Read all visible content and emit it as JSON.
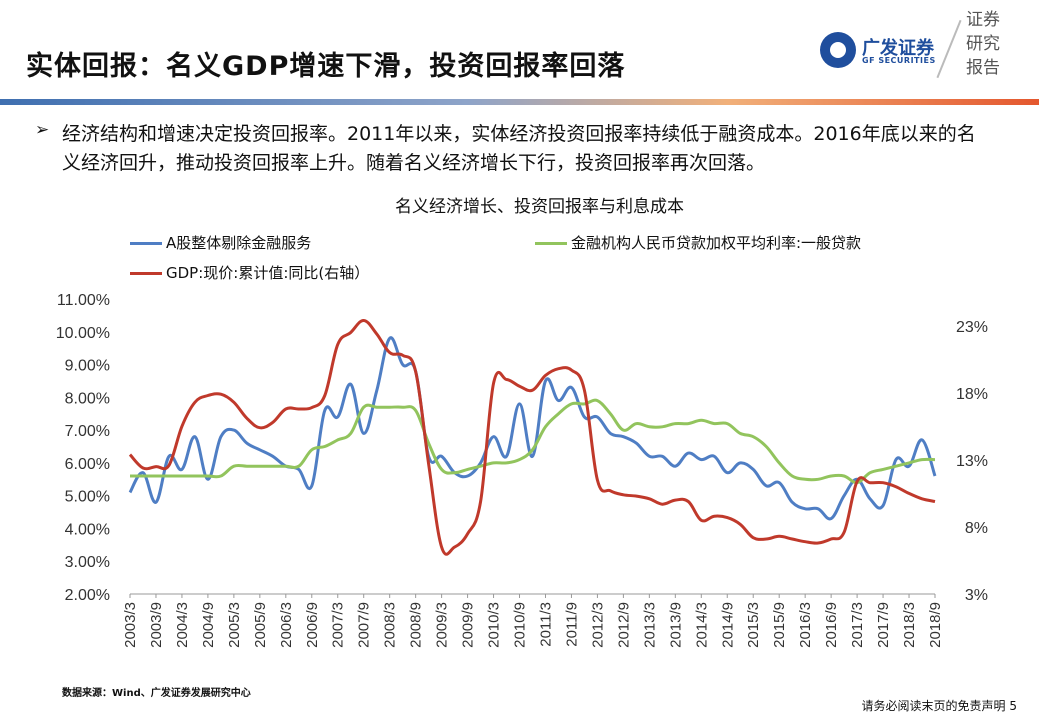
{
  "header": {
    "title": "实体回报：名义GDP增速下滑，投资回报率回落",
    "logo_cn": "广发证券",
    "logo_en": "GF SECURITIES",
    "report_tag": [
      "证券",
      "研究",
      "报告"
    ]
  },
  "body": {
    "bullet": "➢",
    "text": "经济结构和增速决定投资回报率。2011年以来，实体经济投资回报率持续低于融资成本。2016年底以来的名义经济回升，推动投资回报率上升。随着名义经济增长下行，投资回报率再次回落。"
  },
  "footer": {
    "source": "数据来源：Wind、广发证券发展研究中心",
    "disclaimer": "请务必阅读末页的免责声明 5"
  },
  "colors": {
    "blue": "#4f7ec4",
    "green": "#92c45d",
    "red": "#c0392b"
  },
  "chart_data": {
    "type": "line",
    "title": "名义经济增长、投资回报率与利息成本",
    "categories": [
      "2003/3",
      "2003/6",
      "2003/9",
      "2003/12",
      "2004/3",
      "2004/6",
      "2004/9",
      "2004/12",
      "2005/3",
      "2005/6",
      "2005/9",
      "2005/12",
      "2006/3",
      "2006/6",
      "2006/9",
      "2006/12",
      "2007/3",
      "2007/6",
      "2007/9",
      "2007/12",
      "2008/3",
      "2008/6",
      "2008/9",
      "2008/12",
      "2009/3",
      "2009/6",
      "2009/9",
      "2009/12",
      "2010/3",
      "2010/6",
      "2010/9",
      "2010/12",
      "2011/3",
      "2011/6",
      "2011/9",
      "2011/12",
      "2012/3",
      "2012/6",
      "2012/9",
      "2012/12",
      "2013/3",
      "2013/6",
      "2013/9",
      "2013/12",
      "2014/3",
      "2014/6",
      "2014/9",
      "2014/12",
      "2015/3",
      "2015/6",
      "2015/9",
      "2015/12",
      "2016/3",
      "2016/6",
      "2016/9",
      "2016/12",
      "2017/3",
      "2017/6",
      "2017/9",
      "2017/12",
      "2018/3",
      "2018/6",
      "2018/9"
    ],
    "x_tick_labels": [
      "2003/3",
      "2003/9",
      "2004/3",
      "2004/9",
      "2005/3",
      "2005/9",
      "2006/3",
      "2006/9",
      "2007/3",
      "2007/9",
      "2008/3",
      "2008/9",
      "2009/3",
      "2009/9",
      "2010/3",
      "2010/9",
      "2011/3",
      "2011/9",
      "2012/3",
      "2012/9",
      "2013/3",
      "2013/9",
      "2014/3",
      "2014/9",
      "2015/3",
      "2015/9",
      "2016/3",
      "2016/9",
      "2017/3",
      "2017/9",
      "2018/3",
      "2018/9"
    ],
    "y_left": {
      "ylim": [
        2.0,
        11.0
      ],
      "ticks": [
        "2.00%",
        "3.00%",
        "4.00%",
        "5.00%",
        "6.00%",
        "7.00%",
        "8.00%",
        "9.00%",
        "10.00%",
        "11.00%"
      ]
    },
    "y_right": {
      "ylim": [
        3,
        25
      ],
      "ticks": [
        "3%",
        "8%",
        "13%",
        "18%",
        "23%"
      ],
      "tick_values": [
        3,
        8,
        13,
        18,
        23
      ]
    },
    "grid": false,
    "legend_position": "top",
    "series": [
      {
        "name": "A股整体剔除金融服务",
        "axis": "left",
        "color": "#4f7ec4",
        "values": [
          5.1,
          5.7,
          4.8,
          6.2,
          5.8,
          6.8,
          5.5,
          6.8,
          7.0,
          6.6,
          6.4,
          6.2,
          5.9,
          5.8,
          5.3,
          7.6,
          7.4,
          8.4,
          6.9,
          8.2,
          9.8,
          9.0,
          8.8,
          6.2,
          6.2,
          5.7,
          5.6,
          6.0,
          6.8,
          6.2,
          7.8,
          6.2,
          8.5,
          7.9,
          8.3,
          7.4,
          7.4,
          6.9,
          6.8,
          6.6,
          6.2,
          6.2,
          5.9,
          6.3,
          6.1,
          6.2,
          5.7,
          6.0,
          5.8,
          5.3,
          5.4,
          4.8,
          4.6,
          4.6,
          4.3,
          5.0,
          5.5,
          4.9,
          4.7,
          6.1,
          5.9,
          6.7,
          5.6
        ]
      },
      {
        "name": "金融机构人民币贷款加权平均利率:一般贷款",
        "axis": "left",
        "color": "#92c45d",
        "values": [
          5.6,
          5.6,
          5.6,
          5.6,
          5.6,
          5.6,
          5.6,
          5.6,
          5.9,
          5.9,
          5.9,
          5.9,
          5.9,
          5.9,
          6.4,
          6.5,
          6.7,
          6.9,
          7.7,
          7.7,
          7.7,
          7.7,
          7.6,
          6.6,
          5.8,
          5.7,
          5.8,
          5.9,
          6.0,
          6.0,
          6.1,
          6.4,
          7.1,
          7.5,
          7.8,
          7.8,
          7.9,
          7.5,
          7.0,
          7.2,
          7.1,
          7.1,
          7.2,
          7.2,
          7.3,
          7.2,
          7.2,
          6.9,
          6.8,
          6.5,
          6.0,
          5.6,
          5.5,
          5.5,
          5.6,
          5.6,
          5.4,
          5.7,
          5.8,
          5.9,
          6.0,
          6.1,
          6.1
        ]
      },
      {
        "name": "GDP:现价:累计值:同比(右轴）",
        "axis": "right",
        "color": "#c0392b",
        "values": [
          13.4,
          12.4,
          12.5,
          12.6,
          15.5,
          17.3,
          17.8,
          17.9,
          17.3,
          16.1,
          15.4,
          15.8,
          16.8,
          16.8,
          16.9,
          17.8,
          21.6,
          22.5,
          23.4,
          22.4,
          21.0,
          20.8,
          19.6,
          12.7,
          6.5,
          6.5,
          7.5,
          9.9,
          18.7,
          19.0,
          18.5,
          18.2,
          19.3,
          19.8,
          19.7,
          18.2,
          11.5,
          10.7,
          10.4,
          10.3,
          10.1,
          9.7,
          10.0,
          9.9,
          8.5,
          8.8,
          8.7,
          8.2,
          7.2,
          7.1,
          7.3,
          7.1,
          6.9,
          6.8,
          7.1,
          7.6,
          11.4,
          11.3,
          11.3,
          11.0,
          10.5,
          10.1,
          9.9
        ]
      }
    ]
  }
}
